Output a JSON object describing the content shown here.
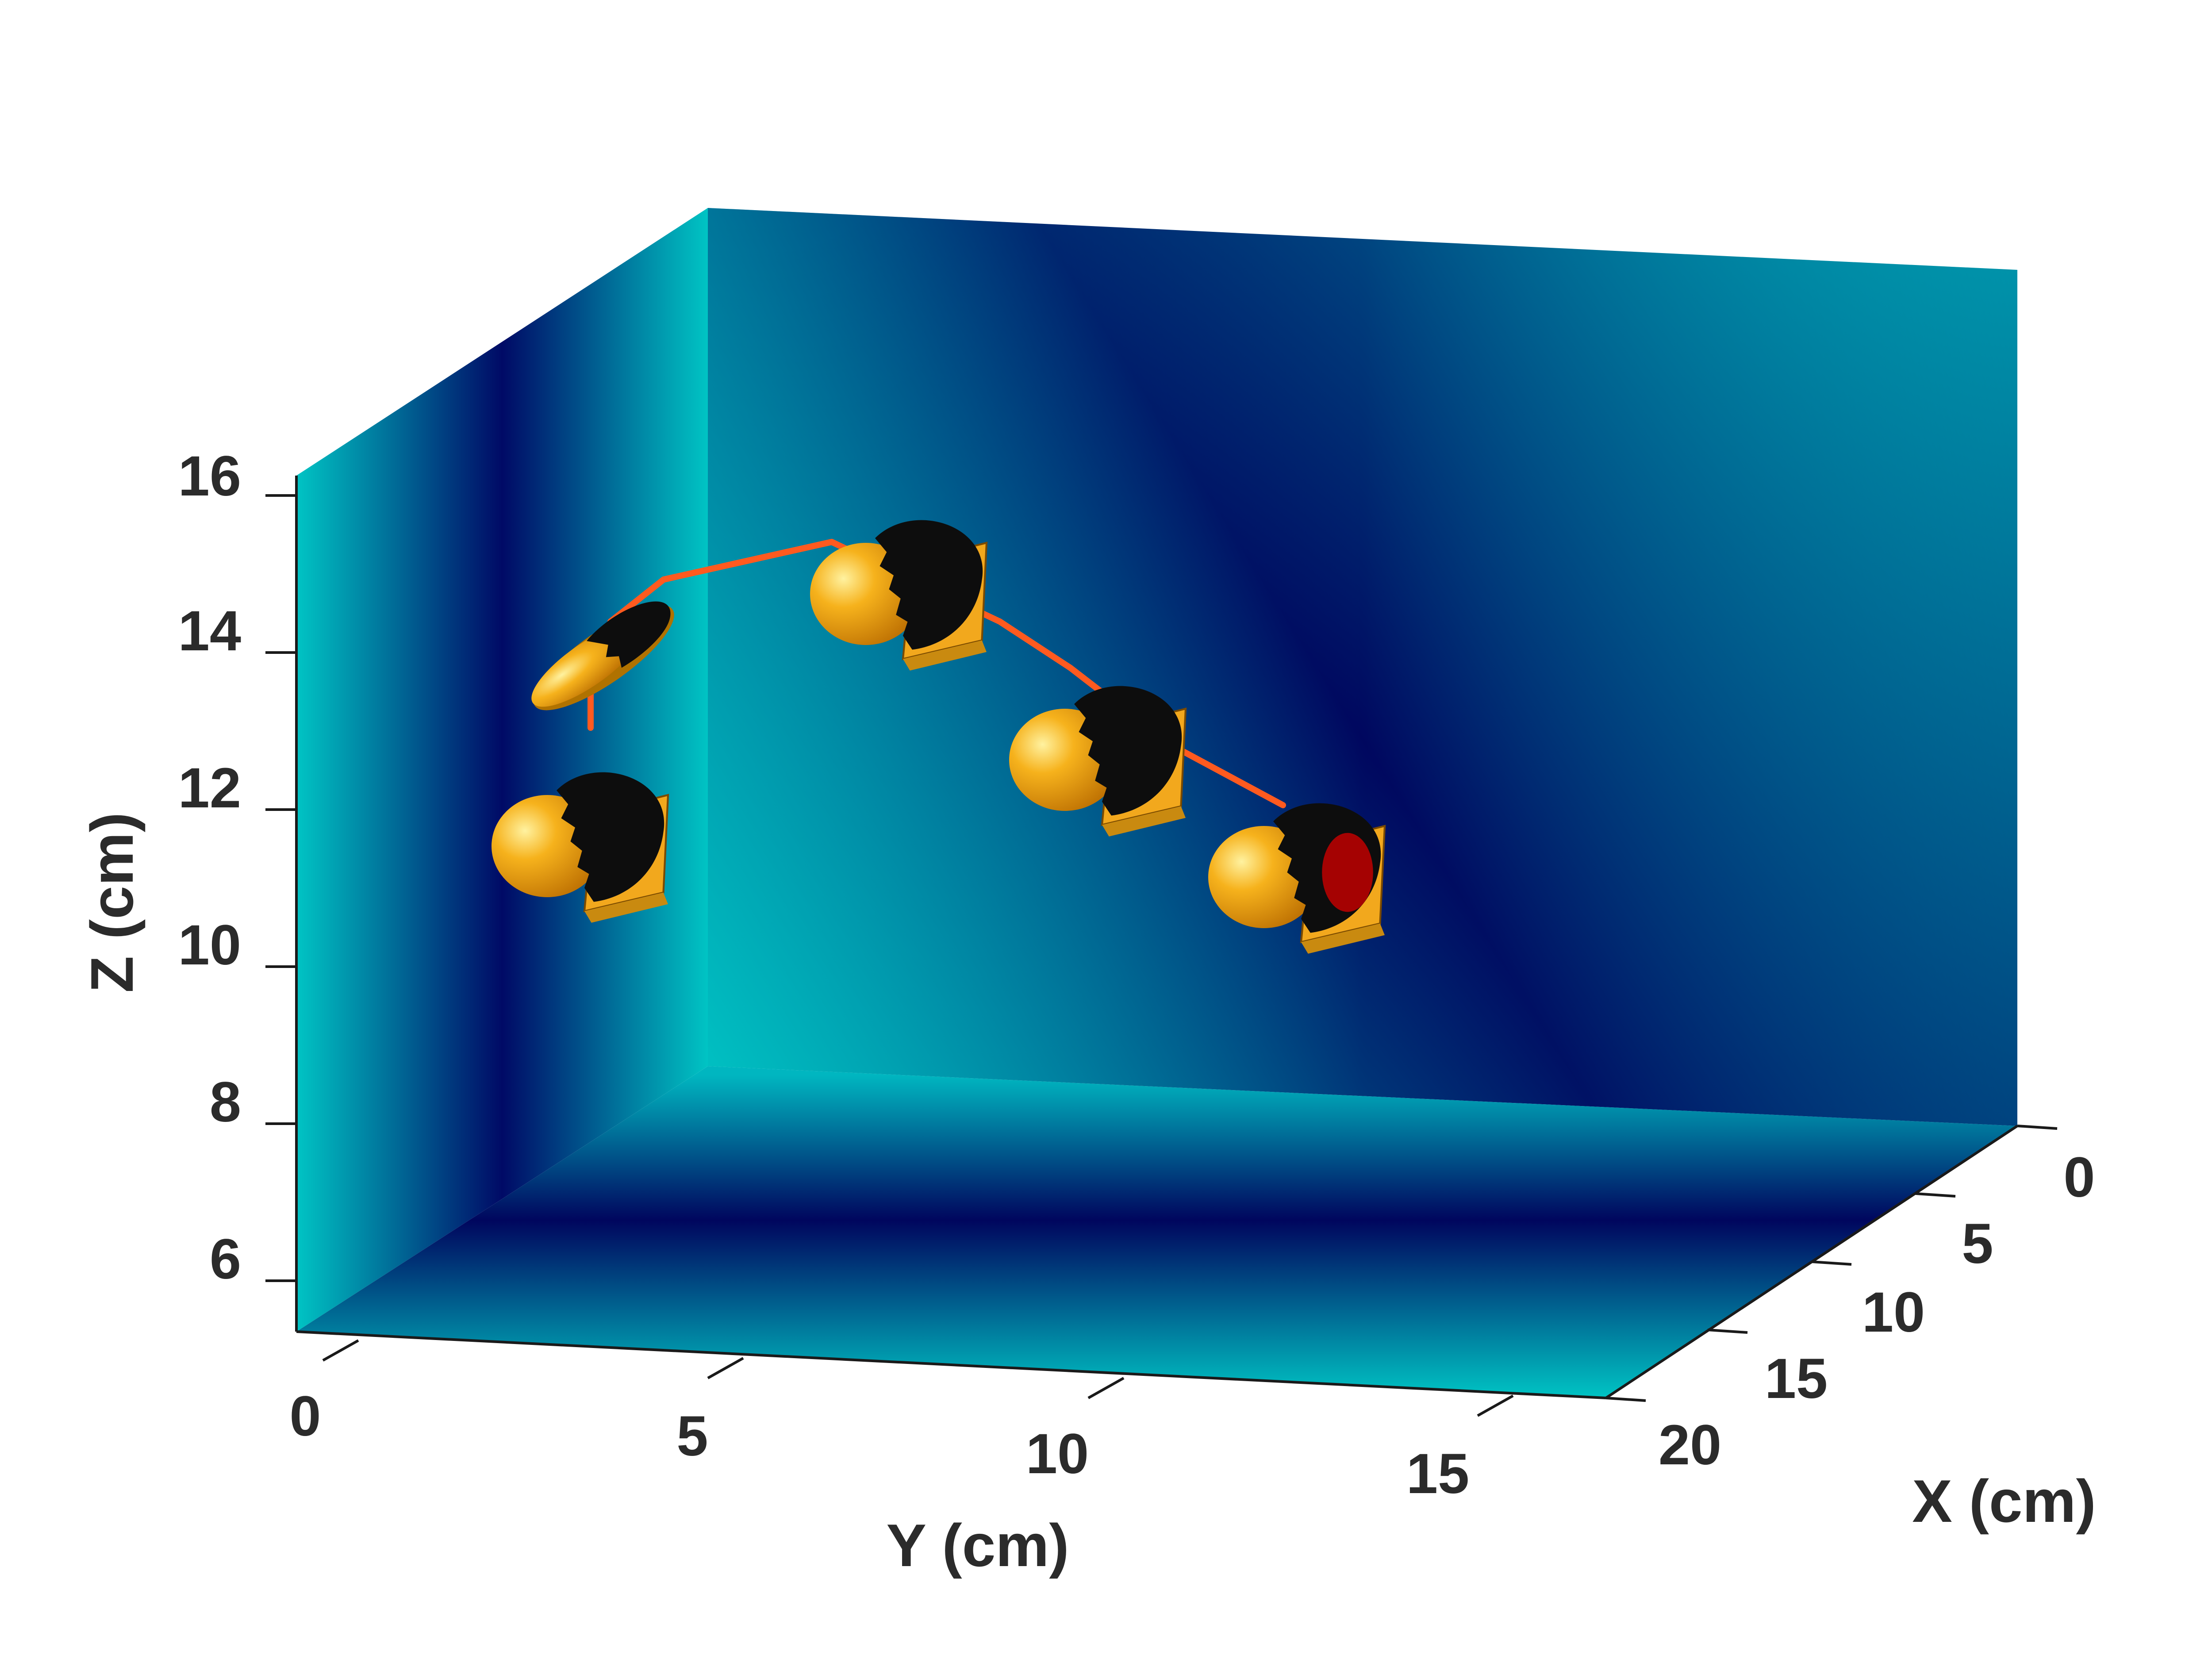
{
  "chart_data": {
    "type": "scatter",
    "projection": "3d",
    "title": "",
    "xlabel": "X (cm)",
    "ylabel": "Y (cm)",
    "zlabel": "Z (cm)",
    "xlim": [
      0,
      20
    ],
    "ylim": [
      0,
      17
    ],
    "zlim": [
      5,
      16
    ],
    "x_ticks": [
      "0",
      "5",
      "10",
      "15",
      "20"
    ],
    "y_ticks": [
      "0",
      "5",
      "10",
      "15"
    ],
    "z_ticks": [
      "6",
      "8",
      "10",
      "12",
      "14",
      "16"
    ],
    "background_colormap": [
      "#00c4c4",
      "#00006e"
    ],
    "trajectory_color": "#ff5a1f",
    "object_colors": {
      "shell": "#f2a81d",
      "dark_face": "#0d0d0d",
      "target_marker": "#cc0000"
    },
    "grid": false,
    "legend": "none",
    "objects": [
      {
        "y": 2.6,
        "z": 13.6,
        "shape": "tilted-disk"
      },
      {
        "y": 2.6,
        "z": 11.3,
        "shape": "dome"
      },
      {
        "y": 6.2,
        "z": 15.0,
        "shape": "dome"
      },
      {
        "y": 9.3,
        "z": 12.7,
        "shape": "dome"
      },
      {
        "y": 12.2,
        "z": 11.4,
        "shape": "dome",
        "marker": true
      }
    ],
    "trajectory": [
      {
        "y": 2.6,
        "z": 11.3
      },
      {
        "y": 2.6,
        "z": 13.7
      },
      {
        "y": 4.0,
        "z": 14.8
      },
      {
        "y": 6.2,
        "z": 15.0
      },
      {
        "y": 7.5,
        "z": 13.9
      },
      {
        "y": 9.3,
        "z": 12.7
      },
      {
        "y": 11.0,
        "z": 11.9
      },
      {
        "y": 12.2,
        "z": 11.4
      }
    ]
  }
}
